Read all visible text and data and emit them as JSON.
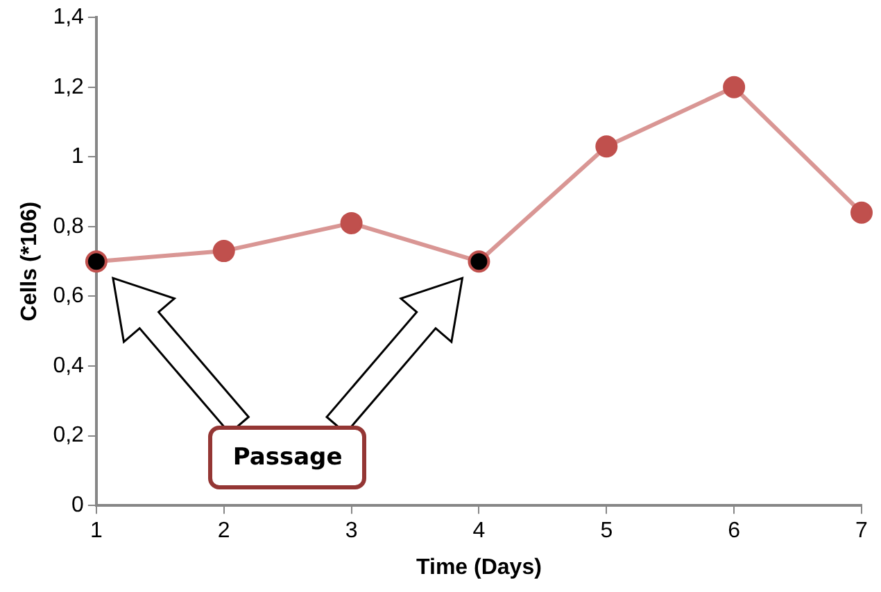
{
  "chart_data": {
    "type": "line",
    "xlabel": "Time (Days)",
    "ylabel": "Cells (*106)",
    "categories": [
      "1",
      "2",
      "3",
      "4",
      "5",
      "6",
      "7"
    ],
    "series": [
      {
        "color": "#c0504d",
        "colors": [
          "#000000",
          "#c0504d",
          "#c0504d",
          "#000000",
          "#c0504d",
          "#c0504d",
          "#c0504d"
        ],
        "values": [
          0.7,
          0.73,
          0.81,
          0.7,
          1.03,
          1.2,
          0.84
        ]
      }
    ],
    "ylim": [
      0,
      1.4
    ],
    "yticks": [
      0,
      {
        "value": 0.2,
        "label": "0,2"
      },
      {
        "value": 0.4,
        "label": "0,4"
      },
      {
        "value": 0.6,
        "label": "0,6"
      },
      {
        "value": 0.8,
        "label": "0,8"
      },
      1,
      {
        "value": 1.2,
        "label": "1,2"
      },
      {
        "value": 1.4,
        "label": "1,4"
      }
    ],
    "annotations": [
      "Passage"
    ],
    "grid": false,
    "legend": false,
    "marker": "circle",
    "line_style": "solid"
  }
}
